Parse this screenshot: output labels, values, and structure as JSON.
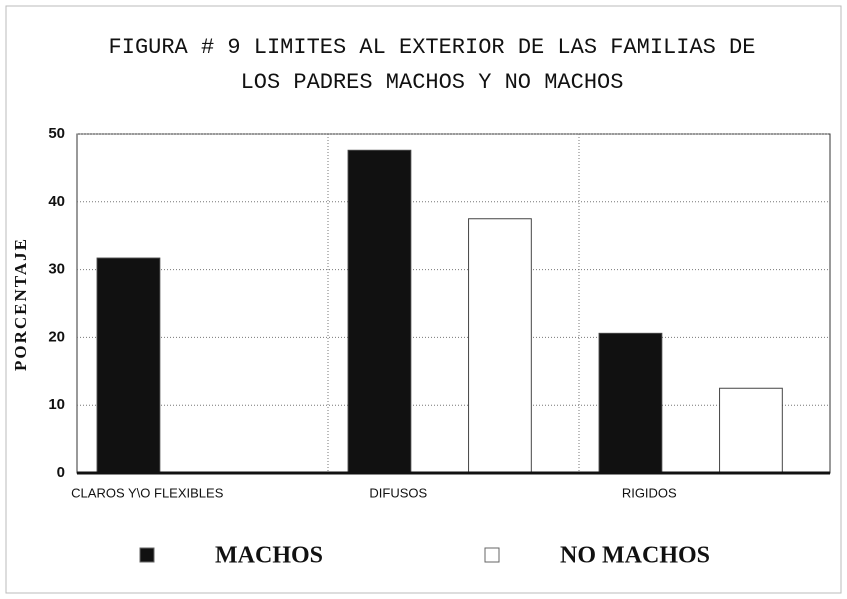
{
  "chart_data": {
    "type": "bar",
    "title": [
      "FIGURA #  9  LIMITES AL EXTERIOR DE LAS FAMILIAS DE",
      "LOS PADRES MACHOS Y NO MACHOS"
    ],
    "y_label": "PORCENTAJE",
    "categories": [
      "CLAROS Y\\O FLEXIBLES",
      "DIFUSOS",
      "RIGIDOS"
    ],
    "series": [
      {
        "name": "MACHOS",
        "color": "#111111",
        "values": [
          31.7,
          47.6,
          20.6
        ]
      },
      {
        "name": "NO MACHOS",
        "color": "#ffffff",
        "values": [
          0,
          37.5,
          12.5
        ]
      }
    ],
    "ylim": [
      0,
      50
    ],
    "yticks": [
      0,
      10,
      20,
      30,
      40,
      50
    ],
    "grid": true
  }
}
